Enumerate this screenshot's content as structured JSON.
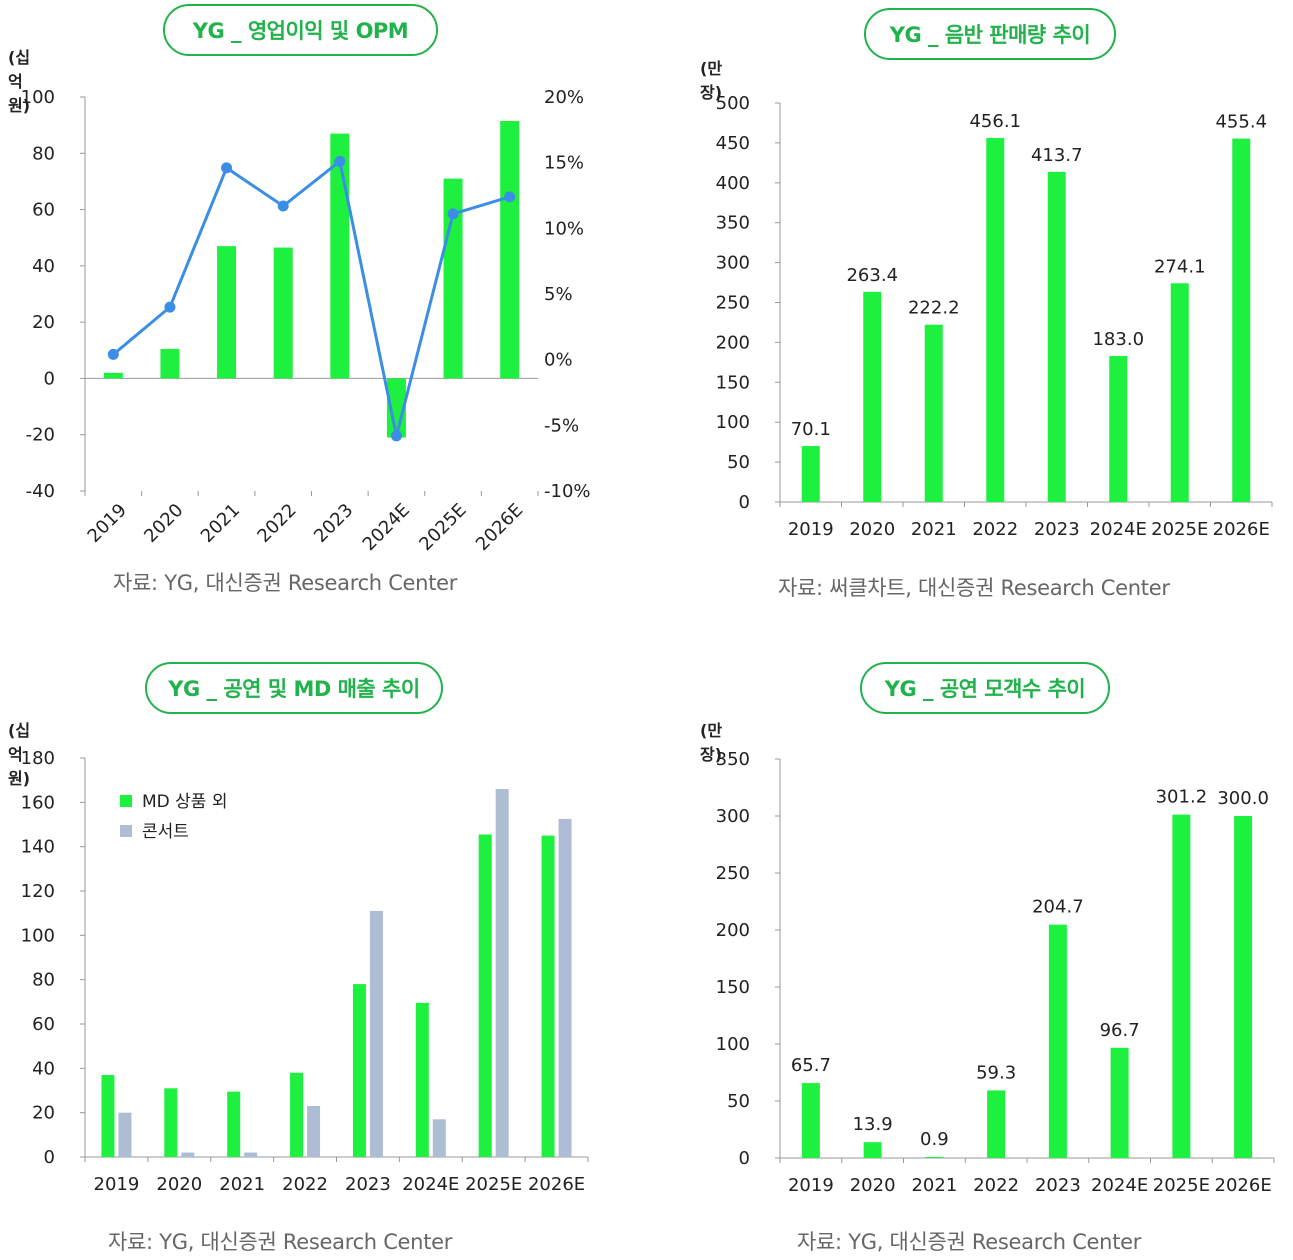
{
  "colors": {
    "green": "#1ef040",
    "gray": "#adbdd3",
    "line": "#3b8ee5",
    "pill": "#22b24c"
  },
  "panels": {
    "p1": {
      "title": "YG _ 영업이익 및 OPM",
      "unit": "(십 억원)",
      "source": "자료:  YG, 대신증권 Research Center"
    },
    "p2": {
      "title": "YG _ 음반 판매량 추이",
      "unit": "(만 장)",
      "source": "자료:  써클차트, 대신증권 Research Center"
    },
    "p3": {
      "title": "YG _ 공연 및 MD 매출 추이",
      "unit": "(십 억원)",
      "source": "자료:  YG, 대신증권 Research Center"
    },
    "p4": {
      "title": "YG _ 공연 모객수 추이",
      "unit": "(만 장)",
      "source": "자료:  YG, 대신증권 Research Center"
    }
  },
  "chart_data": [
    {
      "type": "bar",
      "categories": [
        "2019",
        "2020",
        "2021",
        "2022",
        "2023",
        "2024E",
        "2025E",
        "2026E"
      ],
      "series": [
        {
          "values": [
            2,
            10.5,
            47,
            46.5,
            87,
            -21,
            71,
            91.5
          ]
        },
        {
          "type": "line",
          "values": [
            0.4,
            4.0,
            14.6,
            11.7,
            15.1,
            -5.8,
            11.1,
            12.4
          ]
        }
      ],
      "ylim": [
        -40,
        100
      ],
      "yticks": [
        "-40",
        "-20",
        "0",
        "20",
        "40",
        "60",
        "80",
        "100"
      ],
      "y2lim": [
        -10,
        20
      ],
      "y2ticks": [
        "-10%",
        "-5%",
        "0%",
        "5%",
        "10%",
        "15%",
        "20%"
      ]
    },
    {
      "type": "bar",
      "categories": [
        "2019",
        "2020",
        "2021",
        "2022",
        "2023",
        "2024E",
        "2025E",
        "2026E"
      ],
      "values": [
        70.1,
        263.4,
        222.2,
        456.1,
        413.7,
        183.0,
        274.1,
        455.4
      ],
      "labels": [
        "70.1",
        "263.4",
        "222.2",
        "456.1",
        "413.7",
        "183.0",
        "274.1",
        "455.4"
      ],
      "ylim": [
        0,
        500
      ],
      "yticks": [
        "0",
        "50",
        "100",
        "150",
        "200",
        "250",
        "300",
        "350",
        "400",
        "450",
        "500"
      ]
    },
    {
      "type": "bar",
      "categories": [
        "2019",
        "2020",
        "2021",
        "2022",
        "2023",
        "2024E",
        "2025E",
        "2026E"
      ],
      "series": [
        {
          "name": "MD 상품 외",
          "values": [
            37,
            31,
            29.5,
            38,
            78,
            69.5,
            145.5,
            145
          ]
        },
        {
          "name": "콘서트",
          "values": [
            20,
            2,
            2,
            23,
            111,
            17,
            166,
            152.5
          ]
        }
      ],
      "ylim": [
        0,
        180
      ],
      "yticks": [
        "0",
        "20",
        "40",
        "60",
        "80",
        "100",
        "120",
        "140",
        "160",
        "180"
      ],
      "legend": "top-left"
    },
    {
      "type": "bar",
      "categories": [
        "2019",
        "2020",
        "2021",
        "2022",
        "2023",
        "2024E",
        "2025E",
        "2026E"
      ],
      "values": [
        65.7,
        13.9,
        0.9,
        59.3,
        204.7,
        96.7,
        301.2,
        300.0
      ],
      "labels": [
        "65.7",
        "13.9",
        "0.9",
        "59.3",
        "204.7",
        "96.7",
        "301.2",
        "300.0"
      ],
      "ylim": [
        0,
        350
      ],
      "yticks": [
        "0",
        "50",
        "100",
        "150",
        "200",
        "250",
        "300",
        "350"
      ]
    }
  ]
}
